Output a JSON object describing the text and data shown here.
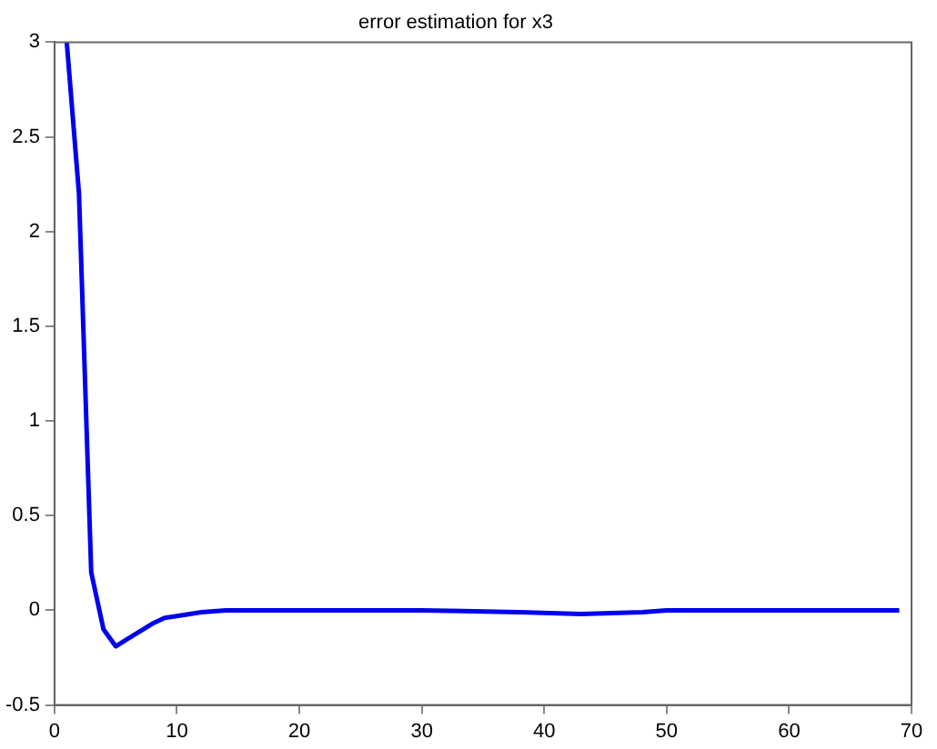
{
  "chart_data": {
    "type": "line",
    "title": "error estimation for x3",
    "x": [
      1,
      2,
      3,
      4,
      5,
      6,
      7,
      8,
      9,
      10,
      12,
      14,
      20,
      30,
      38,
      43,
      48,
      50,
      60,
      69
    ],
    "series": [
      {
        "color": "#0000ee",
        "values": [
          3,
          2.2,
          0.2,
          -0.1,
          -0.19,
          -0.15,
          -0.11,
          -0.07,
          -0.04,
          -0.03,
          -0.01,
          0,
          0,
          0,
          -0.01,
          -0.02,
          -0.01,
          0,
          0,
          0
        ]
      }
    ],
    "xlim": [
      0,
      70
    ],
    "xticks": [
      0,
      10,
      20,
      30,
      40,
      50,
      60,
      70
    ],
    "ylim": [
      -0.5,
      3
    ],
    "yticks": [
      -0.5,
      0,
      0.5,
      1,
      1.5,
      2,
      2.5,
      3
    ],
    "grid": false,
    "legend": false,
    "marker": "none",
    "line_style": "solid"
  }
}
